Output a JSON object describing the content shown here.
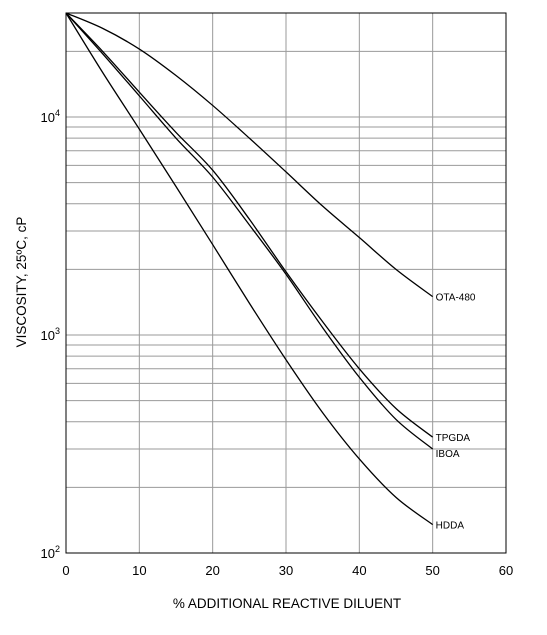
{
  "chart_data": {
    "type": "line",
    "title": "",
    "xlabel": "% ADDITIONAL REACTIVE DILUENT",
    "ylabel": "VISCOSITY, 25ºC, cP",
    "xlim": [
      0,
      60
    ],
    "ylim": [
      100,
      30000
    ],
    "yscale": "log",
    "grid": true,
    "x_ticks": [
      "0",
      "10",
      "20",
      "30",
      "40",
      "50",
      "60"
    ],
    "y_ticks": [
      {
        "base": "10",
        "exp": "2",
        "value": 100
      },
      {
        "base": "10",
        "exp": "3",
        "value": 1000
      },
      {
        "base": "10",
        "exp": "4",
        "value": 10000
      }
    ],
    "line_color": "#000000",
    "grid_color": "#9a9a9a",
    "series": [
      {
        "name": "OTA-480",
        "x": [
          0,
          5,
          10,
          15,
          20,
          25,
          30,
          35,
          40,
          45,
          50
        ],
        "y": [
          30000,
          25500,
          20500,
          15500,
          11300,
          8000,
          5600,
          3900,
          2800,
          2000,
          1500
        ]
      },
      {
        "name": "TPGDA",
        "x": [
          0,
          5,
          10,
          15,
          20,
          25,
          30,
          35,
          40,
          45,
          50
        ],
        "y": [
          30000,
          20000,
          13000,
          8500,
          5700,
          3400,
          1950,
          1150,
          700,
          460,
          340
        ]
      },
      {
        "name": "IBOA",
        "x": [
          0,
          5,
          10,
          15,
          20,
          25,
          30,
          35,
          40,
          45,
          50
        ],
        "y": [
          30000,
          19500,
          12500,
          8000,
          5300,
          3200,
          1900,
          1080,
          640,
          410,
          300
        ]
      },
      {
        "name": "HDDA",
        "x": [
          0,
          5,
          10,
          15,
          20,
          25,
          30,
          35,
          40,
          45,
          50
        ],
        "y": [
          30000,
          16000,
          8800,
          4800,
          2600,
          1400,
          770,
          440,
          270,
          180,
          135
        ]
      }
    ]
  }
}
